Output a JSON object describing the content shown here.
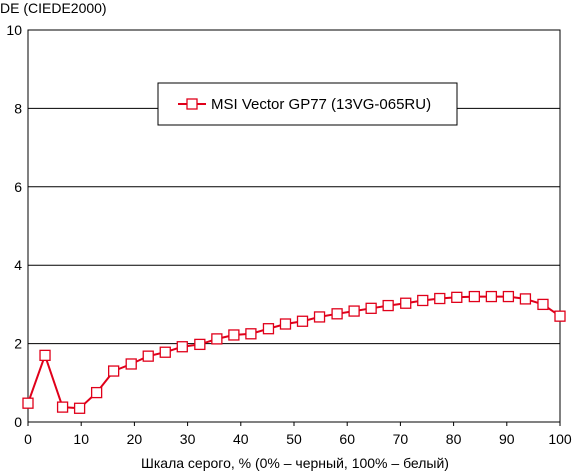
{
  "chart_data": {
    "type": "line",
    "ylabel": "DE (CIEDE2000)",
    "xlabel": "Шкала серого, % (0% – черный, 100% – белый)",
    "xlim": [
      0,
      100
    ],
    "ylim": [
      0,
      10
    ],
    "xticks": [
      "0",
      "10",
      "20",
      "30",
      "40",
      "50",
      "60",
      "70",
      "80",
      "90",
      "100"
    ],
    "yticks": [
      "0",
      "2",
      "4",
      "6",
      "8",
      "10"
    ],
    "grid": "horizontal",
    "legend_position": "top-center",
    "series": [
      {
        "name": "MSI Vector GP77 (13VG-065RU)",
        "color": "#e0001a",
        "marker": "open-square",
        "x": [
          0,
          3.2,
          6.5,
          9.7,
          12.9,
          16.1,
          19.4,
          22.6,
          25.8,
          29.0,
          32.3,
          35.5,
          38.7,
          41.9,
          45.2,
          48.4,
          51.6,
          54.8,
          58.1,
          61.3,
          64.5,
          67.7,
          71.0,
          74.2,
          77.4,
          80.6,
          83.9,
          87.1,
          90.3,
          93.5,
          96.8,
          100
        ],
        "y": [
          0.48,
          1.7,
          0.38,
          0.35,
          0.75,
          1.3,
          1.48,
          1.68,
          1.78,
          1.92,
          1.98,
          2.12,
          2.22,
          2.25,
          2.38,
          2.5,
          2.57,
          2.68,
          2.76,
          2.83,
          2.9,
          2.97,
          3.03,
          3.1,
          3.15,
          3.18,
          3.2,
          3.2,
          3.2,
          3.14,
          3.0,
          2.7
        ]
      }
    ]
  }
}
